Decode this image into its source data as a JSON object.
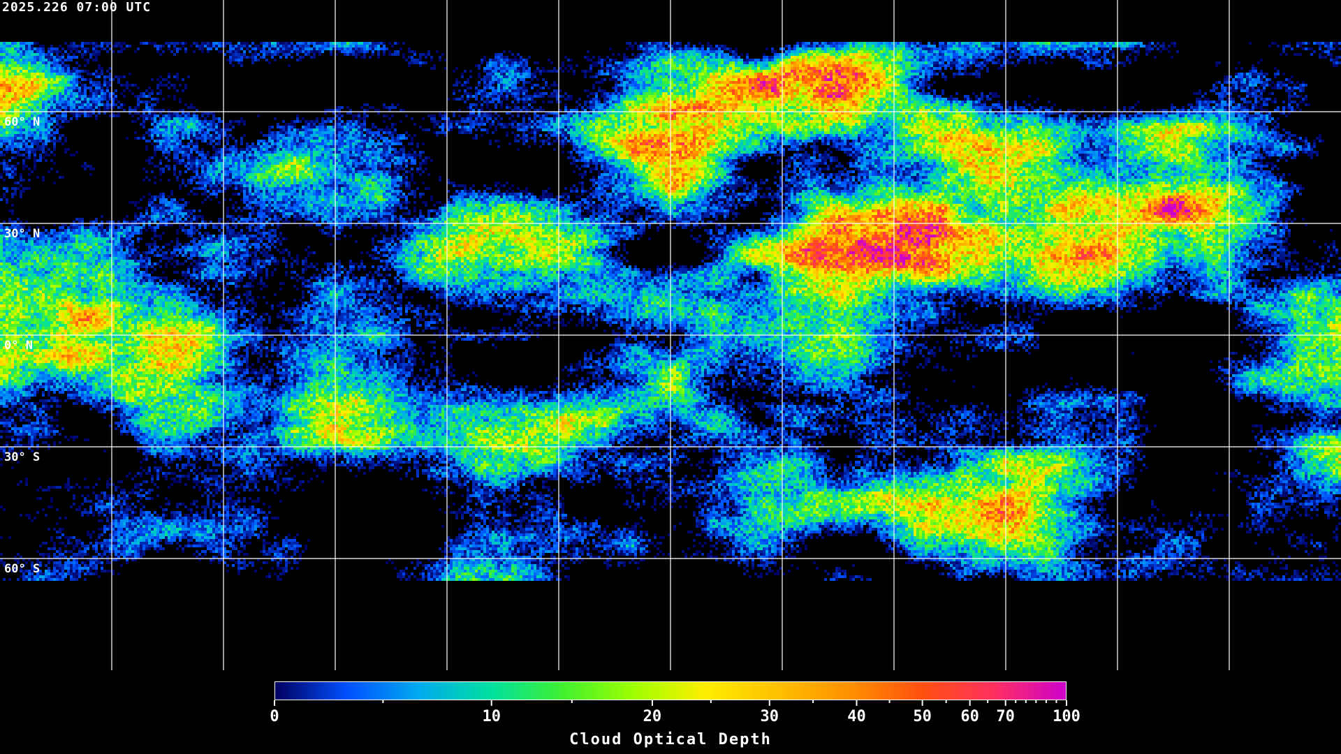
{
  "header": {
    "timestamp": "2025.226 07:00 UTC"
  },
  "map": {
    "projection": "equirectangular",
    "gridlines": {
      "longitude_step_deg": 30,
      "latitude_step_deg": 30
    },
    "latitude_labels": [
      "60° N",
      "30° N",
      "0° N",
      "30° S",
      "60° S"
    ],
    "coastline_color": "#ffffff",
    "no_data_color": "#000000"
  },
  "colorbar": {
    "title": "Cloud Optical Depth",
    "min": 0,
    "max": 100,
    "tick_labels": [
      "0",
      "10",
      "20",
      "30",
      "40",
      "50",
      "60",
      "70",
      "100"
    ],
    "colormap": [
      "#000060",
      "#0050ff",
      "#00aaee",
      "#00e0a0",
      "#40f030",
      "#a0ff00",
      "#ffee00",
      "#ffc000",
      "#ff9000",
      "#ff5010",
      "#ff3060",
      "#cc00cc"
    ]
  }
}
